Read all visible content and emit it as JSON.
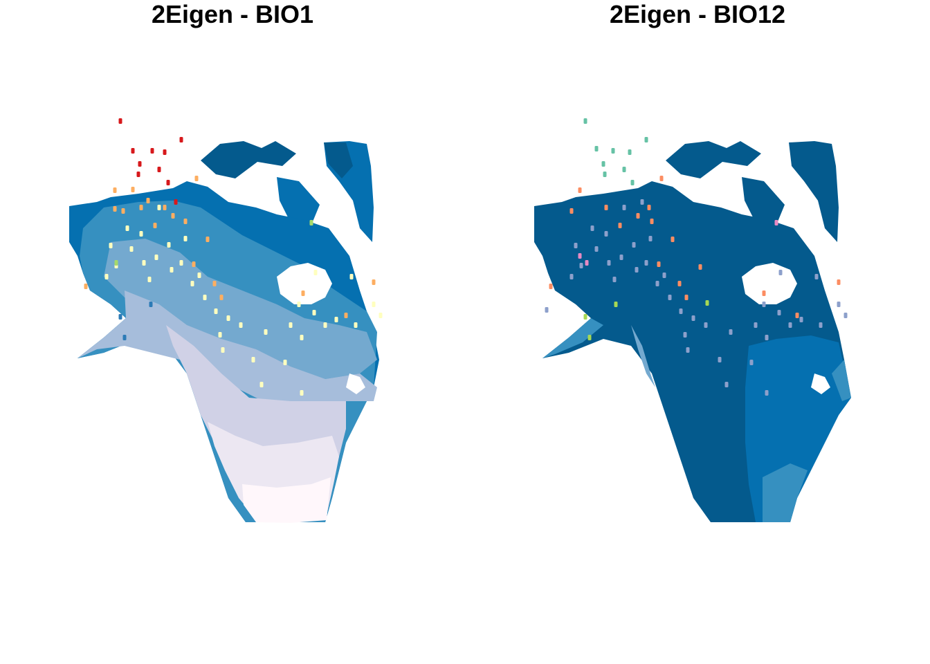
{
  "panels": [
    {
      "id": "bio1",
      "title": "2Eigen - BIO1",
      "palette": {
        "bands": [
          "#045a8d",
          "#0570b0",
          "#3690c0",
          "#74a9cf",
          "#a6bddb",
          "#d0d1e6",
          "#ece7f2",
          "#fff7fb"
        ],
        "points": {
          "red": "#d7191c",
          "orange": "#fdae61",
          "yellow": "#ffffbf",
          "green": "#a6d96a",
          "blue": "#2c7bb6"
        }
      }
    },
    {
      "id": "bio12",
      "title": "2Eigen - BIO12",
      "palette": {
        "bands": [
          "#045a8d",
          "#0570b0",
          "#3690c0",
          "#74a9cf"
        ],
        "points": {
          "teal": "#66c2a5",
          "orange": "#fc8d62",
          "lavender": "#8da0cb",
          "pink": "#e78ac3",
          "green": "#a6d854"
        }
      }
    }
  ]
}
